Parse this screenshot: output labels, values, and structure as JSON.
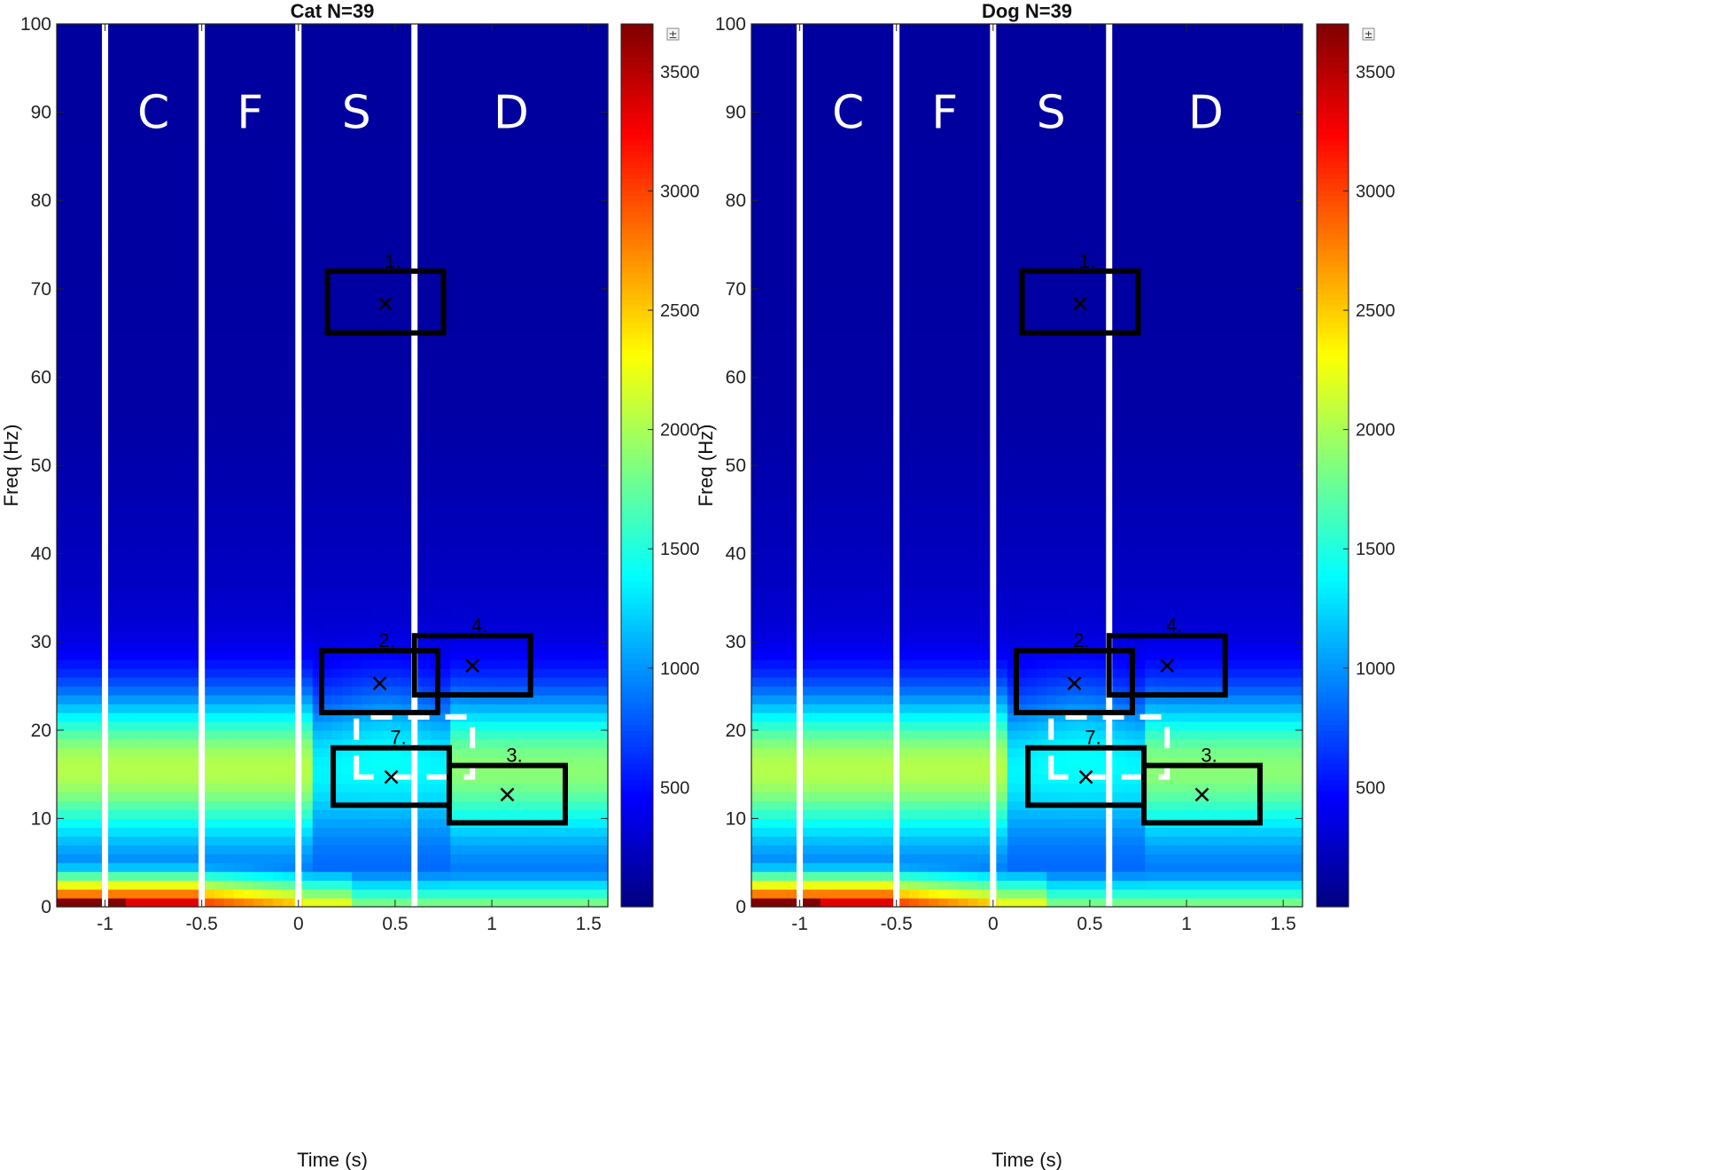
{
  "chart_data": [
    {
      "type": "heatmap",
      "title": "Cat N=39",
      "xlabel": "Time (s)",
      "ylabel": "Freq (Hz)",
      "xlim": [
        -1.25,
        1.6
      ],
      "ylim": [
        0,
        100
      ],
      "xticks": [
        -1,
        -0.5,
        0,
        0.5,
        1,
        1.5
      ],
      "yticks": [
        0,
        10,
        20,
        30,
        40,
        50,
        60,
        70,
        80,
        90,
        100
      ],
      "colorbar": {
        "colormap": "jet",
        "range": [
          0,
          3700
        ],
        "ticks": [
          500,
          1000,
          1500,
          2000,
          2500,
          3000,
          3500
        ],
        "button_label": "±"
      },
      "phase_lines": [
        -1,
        -0.5,
        0,
        0.6
      ],
      "phase_labels": [
        {
          "text": "C",
          "x": -0.75
        },
        {
          "text": "F",
          "x": -0.25
        },
        {
          "text": "S",
          "x": 0.3
        },
        {
          "text": "D",
          "x": 1.1
        }
      ],
      "boxes": [
        {
          "label": "1.",
          "x": [
            0.15,
            0.75
          ],
          "y": [
            65,
            72
          ],
          "marker": [
            0.45,
            68.3
          ]
        },
        {
          "label": "2.",
          "x": [
            0.12,
            0.72
          ],
          "y": [
            22,
            29
          ],
          "marker": [
            0.42,
            25.3
          ]
        },
        {
          "label": "3.",
          "x": [
            0.78,
            1.38
          ],
          "y": [
            9.5,
            16
          ],
          "marker": [
            1.08,
            12.7
          ]
        },
        {
          "label": "4.",
          "x": [
            0.6,
            1.2
          ],
          "y": [
            24,
            30.7
          ],
          "marker": [
            0.9,
            27.3
          ]
        },
        {
          "label": "7.",
          "x": [
            0.18,
            0.78
          ],
          "y": [
            11.5,
            18
          ],
          "marker": [
            0.48,
            14.7
          ]
        }
      ],
      "dashed_region": {
        "x": [
          0.3,
          0.9
        ],
        "y": [
          14.7,
          21.5
        ]
      }
    },
    {
      "type": "heatmap",
      "title": "Dog N=39",
      "xlabel": "Time (s)",
      "ylabel": "Freq (Hz)",
      "xlim": [
        -1.25,
        1.6
      ],
      "ylim": [
        0,
        100
      ],
      "xticks": [
        -1,
        -0.5,
        0,
        0.5,
        1,
        1.5
      ],
      "yticks": [
        0,
        10,
        20,
        30,
        40,
        50,
        60,
        70,
        80,
        90,
        100
      ],
      "colorbar": {
        "colormap": "jet",
        "range": [
          0,
          3700
        ],
        "ticks": [
          500,
          1000,
          1500,
          2000,
          2500,
          3000,
          3500
        ],
        "button_label": "±"
      },
      "phase_lines": [
        -1,
        -0.5,
        0,
        0.6
      ],
      "phase_labels": [
        {
          "text": "C",
          "x": -0.75
        },
        {
          "text": "F",
          "x": -0.25
        },
        {
          "text": "S",
          "x": 0.3
        },
        {
          "text": "D",
          "x": 1.1
        }
      ],
      "boxes": [
        {
          "label": "1.",
          "x": [
            0.15,
            0.75
          ],
          "y": [
            65,
            72
          ],
          "marker": [
            0.45,
            68.3
          ]
        },
        {
          "label": "2.",
          "x": [
            0.12,
            0.72
          ],
          "y": [
            22,
            29
          ],
          "marker": [
            0.42,
            25.3
          ]
        },
        {
          "label": "3.",
          "x": [
            0.78,
            1.38
          ],
          "y": [
            9.5,
            16
          ],
          "marker": [
            1.08,
            12.7
          ]
        },
        {
          "label": "4.",
          "x": [
            0.6,
            1.2
          ],
          "y": [
            24,
            30.7
          ],
          "marker": [
            0.9,
            27.3
          ]
        },
        {
          "label": "7.",
          "x": [
            0.18,
            0.78
          ],
          "y": [
            11.5,
            18
          ],
          "marker": [
            0.48,
            14.7
          ]
        }
      ],
      "dashed_region": {
        "x": [
          0.3,
          0.9
        ],
        "y": [
          14.7,
          21.5
        ]
      }
    }
  ]
}
